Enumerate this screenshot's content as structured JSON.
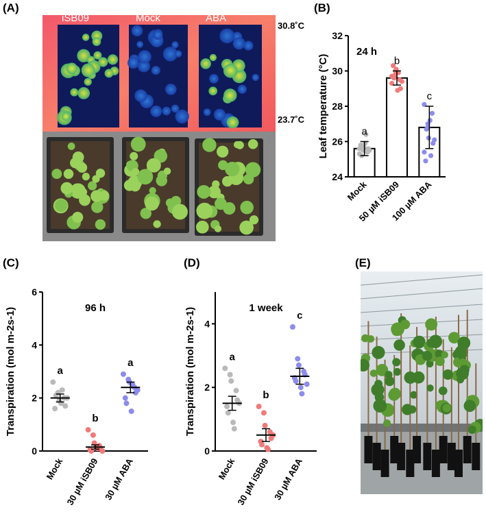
{
  "panels": {
    "A": "(A)",
    "B": "(B)",
    "C": "(C)",
    "D": "(D)",
    "E": "(E)"
  },
  "panelA": {
    "treatments": [
      "iSB09",
      "Mock",
      "ABA"
    ],
    "temp_max": "30.8˚C",
    "temp_min": "23.7˚C"
  },
  "chart_data": [
    {
      "panel": "B",
      "type": "bar",
      "title": "24 h",
      "ylabel": "Leaf temperature (°C)",
      "xlabel": "",
      "ylim": [
        24,
        32
      ],
      "yticks": [
        24,
        26,
        28,
        30,
        32
      ],
      "categories": [
        "Mock",
        "50 µM iSB09",
        "100 µM ABA"
      ],
      "values": [
        25.6,
        29.6,
        26.8
      ],
      "errors": [
        0.4,
        0.4,
        1.2
      ],
      "letters": [
        "a",
        "b",
        "c"
      ],
      "colors": [
        "#b9b9b9",
        "#f07a7a",
        "#8c8cec"
      ],
      "points": [
        [
          25.3,
          25.5,
          25.7,
          25.4,
          25.6,
          25.8,
          25.2,
          25.9,
          26.4,
          25.5,
          25.6,
          25.7
        ],
        [
          29.3,
          29.8,
          30.1,
          29.5,
          29.0,
          30.3,
          29.6,
          28.9,
          29.9,
          29.4,
          29.7,
          30.0
        ],
        [
          25.4,
          27.0,
          26.2,
          27.6,
          25.9,
          24.9,
          26.7,
          27.2,
          25.2,
          26.1,
          28.1,
          26.8
        ]
      ]
    },
    {
      "panel": "C",
      "type": "scatter",
      "title": "96 h",
      "ylabel": "Transpiration (mol m-2s-1)",
      "ylim": [
        0,
        6
      ],
      "yticks": [
        0,
        2,
        4,
        6
      ],
      "categories": [
        "Mock",
        "30 µM iSB09",
        "30 µM ABA"
      ],
      "means": [
        2.0,
        0.15,
        2.4
      ],
      "errors": [
        0.15,
        0.08,
        0.2
      ],
      "letters": [
        "a",
        "b",
        "a"
      ],
      "colors": [
        "#b9b9b9",
        "#f07a7a",
        "#8c8cec"
      ],
      "points": [
        [
          2.6,
          2.2,
          1.9,
          2.0,
          1.7,
          1.6,
          2.1,
          1.8,
          2.3,
          2.0
        ],
        [
          0.8,
          0.6,
          0.3,
          0.2,
          0.1,
          0.05,
          0.0,
          0.15,
          0.1,
          0.0
        ],
        [
          2.9,
          2.7,
          2.6,
          2.4,
          2.2,
          2.0,
          1.8,
          1.5,
          2.5,
          2.3
        ]
      ]
    },
    {
      "panel": "D",
      "type": "scatter",
      "title": "1 week",
      "ylabel": "Transpiration (mol m-2s-1)",
      "ylim": [
        0,
        5
      ],
      "yticks": [
        0,
        2,
        4
      ],
      "categories": [
        "Mock",
        "30 µM iSB09",
        "30 µM ABA"
      ],
      "means": [
        1.5,
        0.5,
        2.35
      ],
      "errors": [
        0.22,
        0.2,
        0.25
      ],
      "letters": [
        "a",
        "b",
        "c"
      ],
      "colors": [
        "#b9b9b9",
        "#f07a7a",
        "#8c8cec"
      ],
      "points": [
        [
          2.6,
          2.4,
          2.2,
          1.9,
          1.6,
          1.4,
          1.2,
          0.9,
          0.7,
          1.5
        ],
        [
          1.4,
          1.2,
          0.8,
          0.6,
          0.4,
          0.3,
          0.2,
          0.1,
          0.05,
          0.5
        ],
        [
          3.9,
          2.9,
          2.7,
          2.5,
          2.4,
          2.3,
          2.2,
          2.0,
          1.8,
          2.1
        ]
      ]
    }
  ]
}
